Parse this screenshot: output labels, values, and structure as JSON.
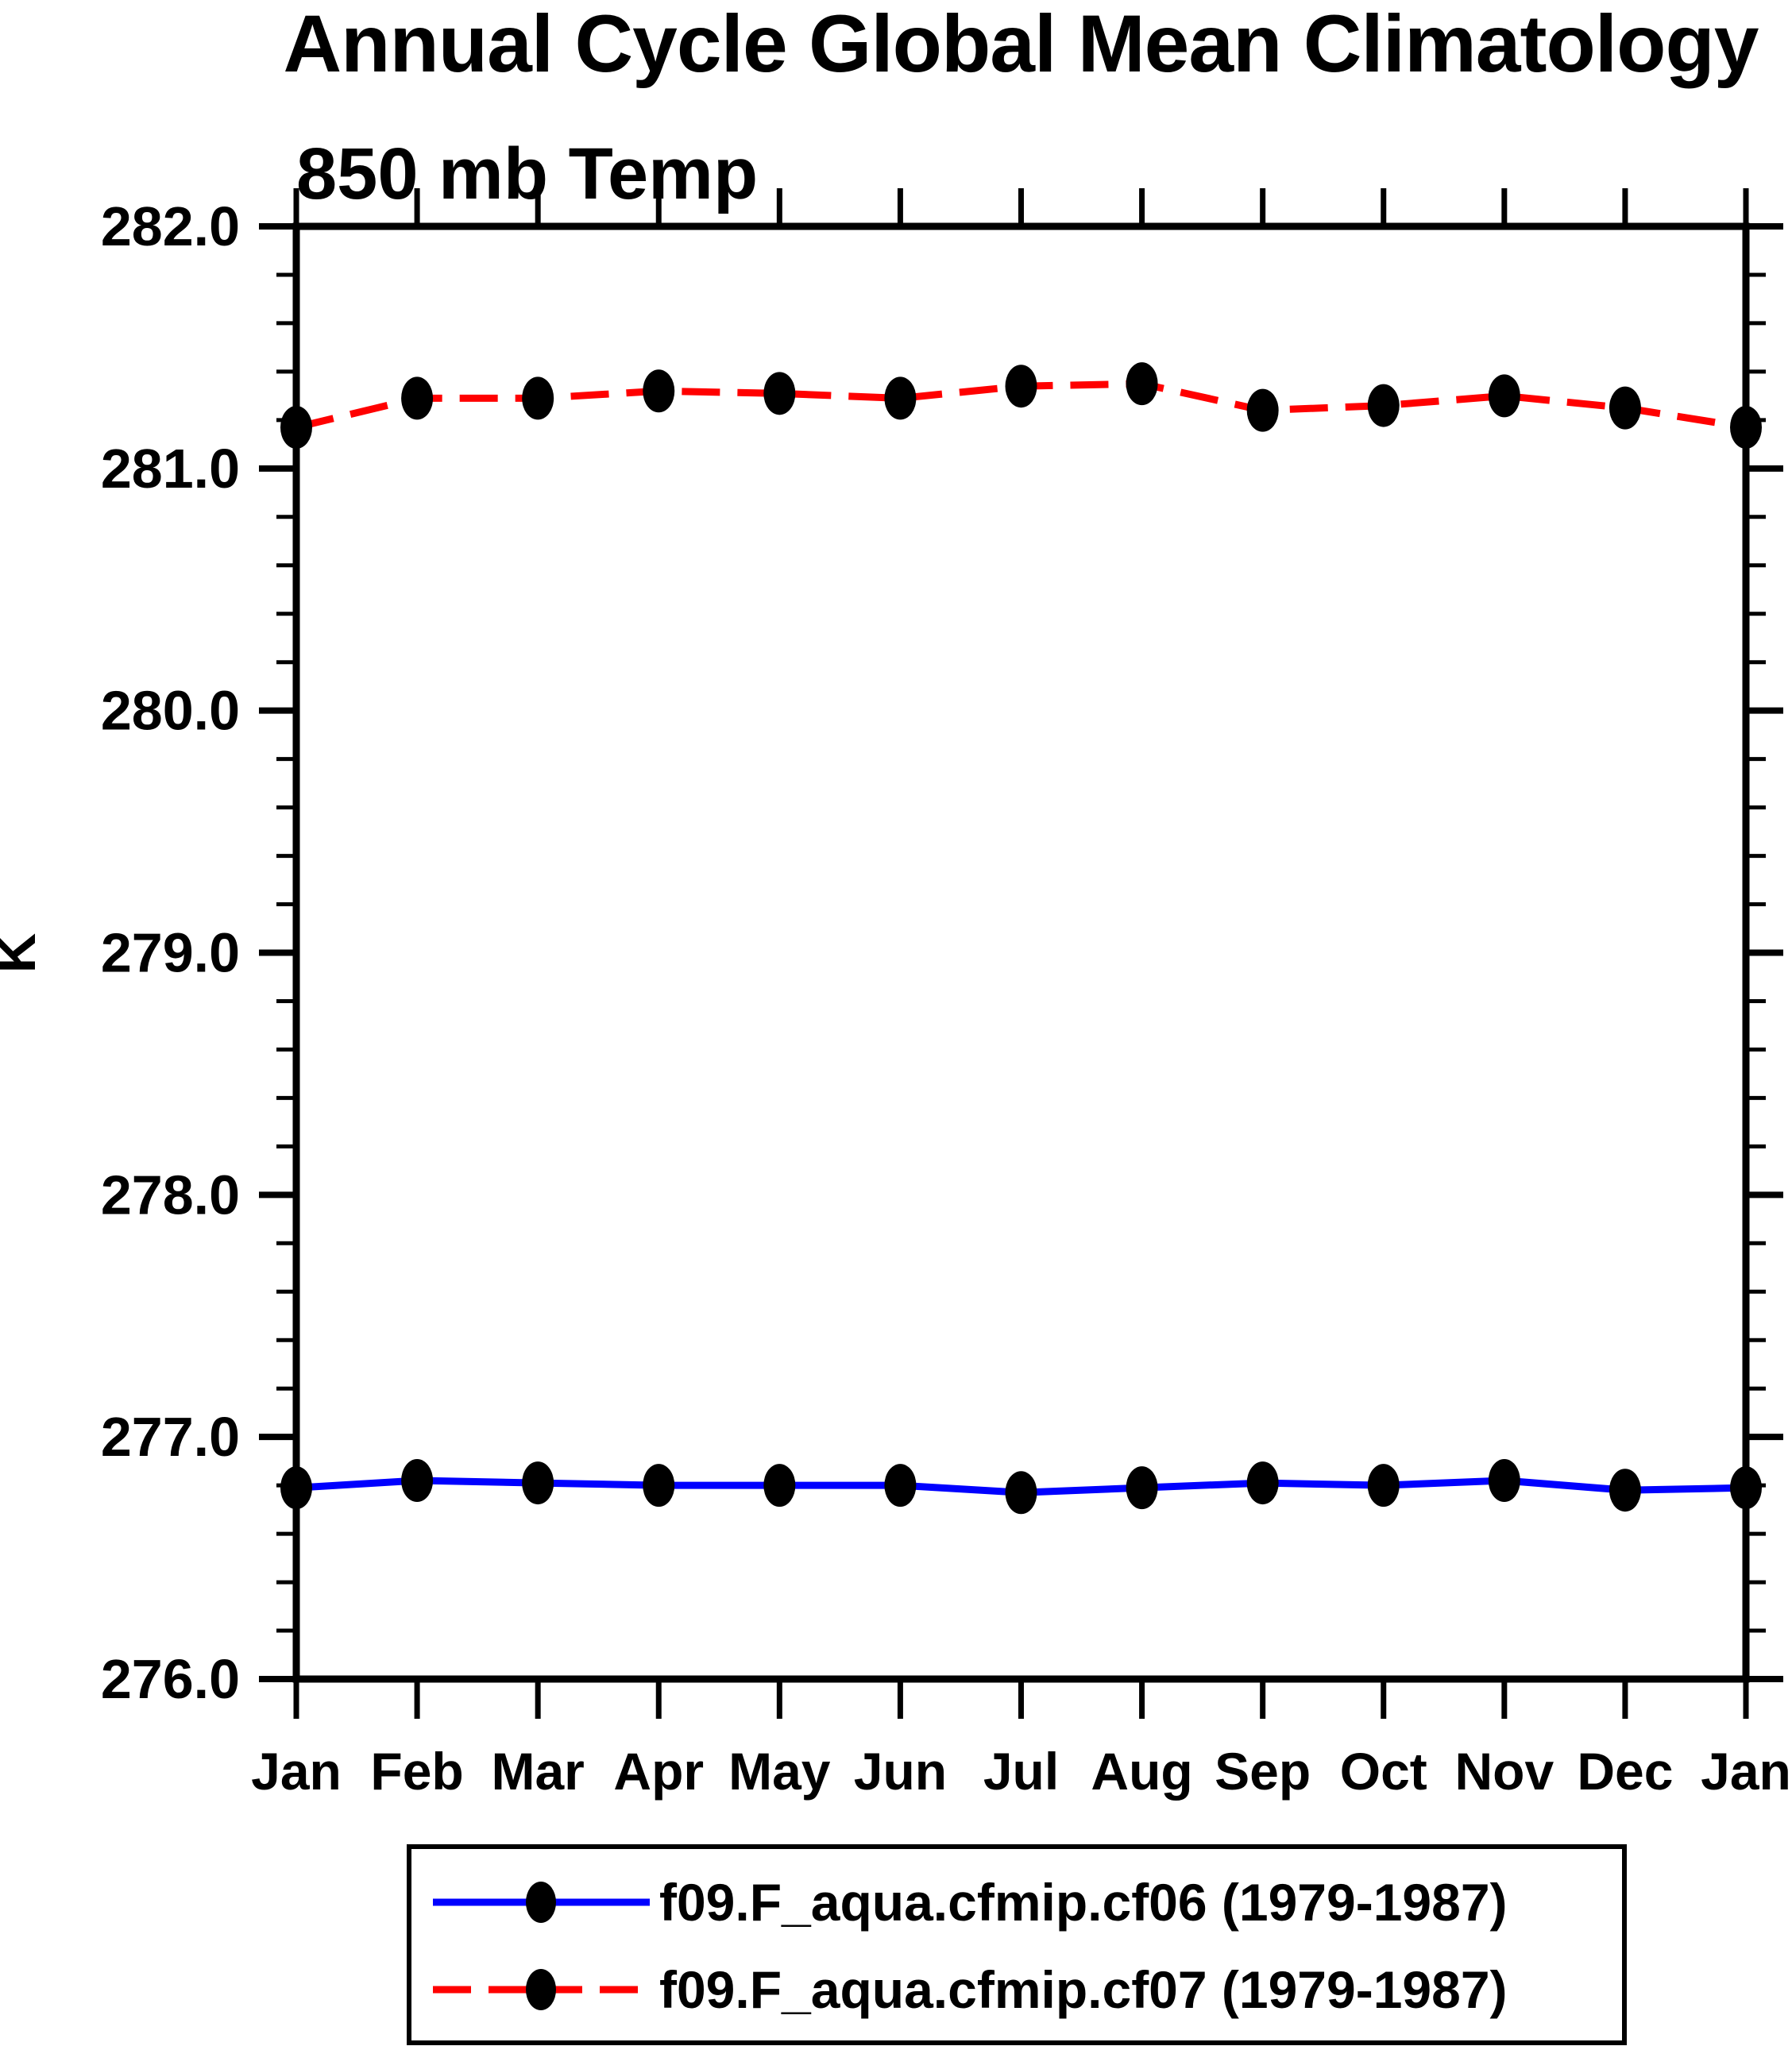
{
  "title": "Annual Cycle Global Mean Climatology",
  "subtitle": "850 mb Temp",
  "ylabel": "K",
  "colors": {
    "series1": "#0000ff",
    "series2": "#ff0000",
    "marker": "#000000",
    "axis": "#000000",
    "background": "#ffffff"
  },
  "legend": {
    "position": "bottom",
    "entry1_label": "f09.F_aqua.cfmip.cf06 (1979-1987)",
    "entry2_label": "f09.F_aqua.cfmip.cf07 (1979-1987)"
  },
  "chart_data": {
    "type": "line",
    "title": "Annual Cycle Global Mean Climatology",
    "subtitle": "850 mb Temp",
    "xlabel": "",
    "ylabel": "K",
    "categories": [
      "Jan",
      "Feb",
      "Mar",
      "Apr",
      "May",
      "Jun",
      "Jul",
      "Aug",
      "Sep",
      "Oct",
      "Nov",
      "Dec",
      "Jan"
    ],
    "series": [
      {
        "name": "f09.F_aqua.cfmip.cf06 (1979-1987)",
        "color": "#0000ff",
        "line_style": "solid",
        "marker": "filled-ellipse",
        "marker_color": "#000000",
        "values": [
          276.79,
          276.82,
          276.81,
          276.8,
          276.8,
          276.8,
          276.77,
          276.79,
          276.81,
          276.8,
          276.82,
          276.78,
          276.79
        ]
      },
      {
        "name": "f09.F_aqua.cfmip.cf07 (1979-1987)",
        "color": "#ff0000",
        "line_style": "dashed",
        "marker": "filled-ellipse",
        "marker_color": "#000000",
        "values": [
          281.17,
          281.29,
          281.29,
          281.32,
          281.31,
          281.29,
          281.34,
          281.35,
          281.24,
          281.26,
          281.3,
          281.25,
          281.17
        ]
      }
    ],
    "ylim": [
      276.0,
      282.0
    ],
    "ytick_major_step": 1.0,
    "ytick_minor_step": 0.2,
    "ytick_label_format": "one_decimal",
    "grid": false,
    "legend_position": "bottom-box"
  }
}
